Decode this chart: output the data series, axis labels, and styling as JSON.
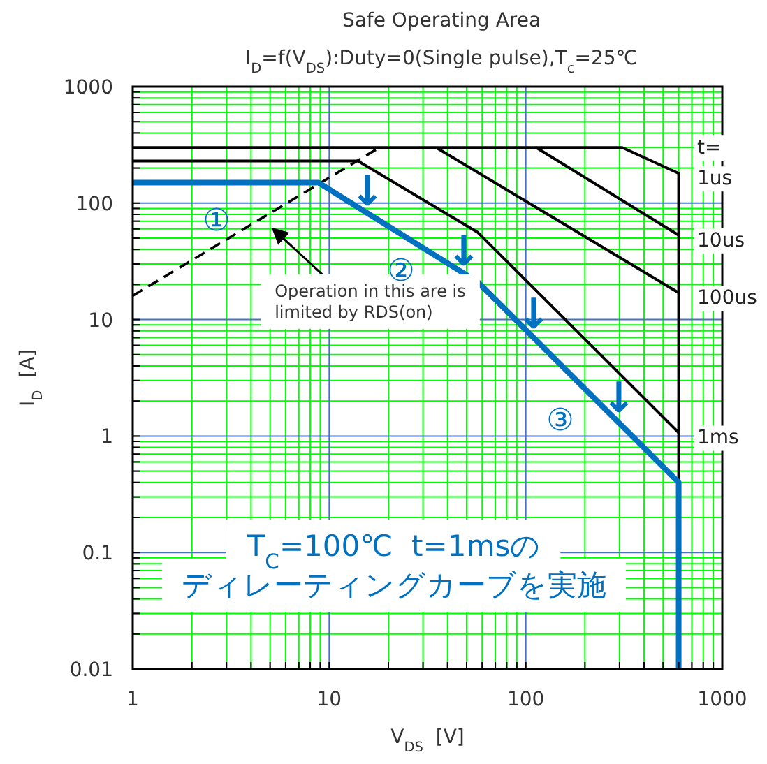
{
  "chart_data": {
    "type": "line",
    "title": "Safe Operating Area",
    "subtitle": "I$_{D}$=f(V$_{DS}$):Duty=0(Single pulse),T$_{c}$=25℃",
    "xlabel": "V$_{DS}$  [V]",
    "ylabel": "I$_{D}$  [A]",
    "log": "xy",
    "xlim": [
      1,
      1000
    ],
    "ylim": [
      0.01,
      1000
    ],
    "xticks": [
      1,
      {
        "value": 2,
        "label": null
      },
      {
        "value": 3,
        "label": null
      },
      {
        "value": 4,
        "label": null
      },
      {
        "value": 5,
        "label": null
      },
      {
        "value": 6,
        "label": null
      },
      {
        "value": 7,
        "label": null
      },
      {
        "value": 8,
        "label": null
      },
      {
        "value": 9,
        "label": null
      },
      10,
      {
        "value": 20,
        "label": null
      },
      {
        "value": 30,
        "label": null
      },
      {
        "value": 40,
        "label": null
      },
      {
        "value": 50,
        "label": null
      },
      {
        "value": 60,
        "label": null
      },
      {
        "value": 70,
        "label": null
      },
      {
        "value": 80,
        "label": null
      },
      {
        "value": 90,
        "label": null
      },
      100,
      {
        "value": 200,
        "label": null
      },
      {
        "value": 300,
        "label": null
      },
      {
        "value": 400,
        "label": null
      },
      {
        "value": 500,
        "label": null
      },
      {
        "value": 600,
        "label": null
      },
      {
        "value": 700,
        "label": null
      },
      {
        "value": 800,
        "label": null
      },
      {
        "value": 900,
        "label": null
      },
      1000
    ],
    "yticks": [
      0.01,
      {
        "value": 0.02,
        "label": null
      },
      {
        "value": 0.03,
        "label": null
      },
      {
        "value": 0.04,
        "label": null
      },
      {
        "value": 0.05,
        "label": null
      },
      {
        "value": 0.06,
        "label": null
      },
      {
        "value": 0.07,
        "label": null
      },
      {
        "value": 0.08,
        "label": null
      },
      {
        "value": 0.09,
        "label": null
      },
      0.1,
      {
        "value": 0.2,
        "label": null
      },
      {
        "value": 0.3,
        "label": null
      },
      {
        "value": 0.4,
        "label": null
      },
      {
        "value": 0.5,
        "label": null
      },
      {
        "value": 0.6,
        "label": null
      },
      {
        "value": 0.7,
        "label": null
      },
      {
        "value": 0.8,
        "label": null
      },
      {
        "value": 0.9,
        "label": null
      },
      1,
      {
        "value": 2,
        "label": null
      },
      {
        "value": 3,
        "label": null
      },
      {
        "value": 4,
        "label": null
      },
      {
        "value": 5,
        "label": null
      },
      {
        "value": 6,
        "label": null
      },
      {
        "value": 7,
        "label": null
      },
      {
        "value": 8,
        "label": null
      },
      {
        "value": 9,
        "label": null
      },
      10,
      {
        "value": 20,
        "label": null
      },
      {
        "value": 30,
        "label": null
      },
      {
        "value": 40,
        "label": null
      },
      {
        "value": 50,
        "label": null
      },
      {
        "value": 60,
        "label": null
      },
      {
        "value": 70,
        "label": null
      },
      {
        "value": 80,
        "label": null
      },
      {
        "value": 90,
        "label": null
      },
      100,
      {
        "value": 200,
        "label": null
      },
      {
        "value": 300,
        "label": null
      },
      {
        "value": 400,
        "label": null
      },
      {
        "value": 500,
        "label": null
      },
      {
        "value": 600,
        "label": null
      },
      {
        "value": 700,
        "label": null
      },
      {
        "value": 800,
        "label": null
      },
      {
        "value": 900,
        "label": null
      },
      1000
    ],
    "grid": true,
    "series": [
      {
        "name": "1us",
        "color": "#000000",
        "x": [
          1,
          310,
          600,
          600
        ],
        "values": [
          300,
          300,
          180,
          0.01
        ]
      },
      {
        "name": "10us",
        "color": "#000000",
        "x": [
          113,
          600
        ],
        "values": [
          300,
          53
        ]
      },
      {
        "name": "100us",
        "color": "#000000",
        "x": [
          35,
          600
        ],
        "values": [
          300,
          17
        ]
      },
      {
        "name": "1ms",
        "color": "#000000",
        "x": [
          1,
          14,
          57,
          600
        ],
        "values": [
          230,
          230,
          56,
          1.07
        ]
      },
      {
        "color": "#000000",
        "line_style": "dashed",
        "x": [
          1,
          18
        ],
        "values": [
          16,
          300
        ]
      },
      {
        "color": "#0070c0",
        "x": [
          1,
          8.8,
          57,
          600,
          600
        ],
        "values": [
          150,
          150,
          21,
          0.4,
          0.01
        ]
      }
    ],
    "annotations": [
      "t=",
      {
        "text": "Operation in this are is\nlimited by RDS(on)",
        "x": 4.86,
        "y": 67
      },
      "①",
      "②",
      "③",
      "↓",
      "↓",
      "↓",
      "↓",
      "T$_{C}$=100℃  t=1msの",
      "ディレーティングカーブを実施"
    ]
  }
}
